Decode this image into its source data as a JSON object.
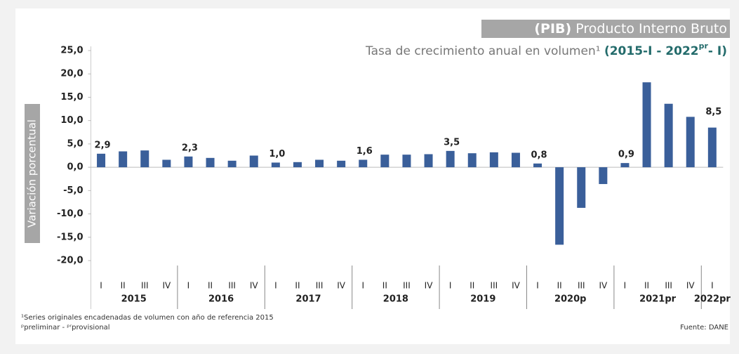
{
  "chart_data": {
    "type": "bar",
    "title_prefix": "(PIB)",
    "title": "Producto Interno Bruto",
    "subtitle": "Tasa de crecimiento anual en volumen¹",
    "subtitle_highlight": "(2015-I - 2022",
    "subtitle_sup": "pr",
    "subtitle_end": "- I)",
    "y_label": "Variación porcentual",
    "groups": [
      {
        "label": "2015",
        "categories": [
          "I",
          "II",
          "III",
          "IV"
        ]
      },
      {
        "label": "2016",
        "categories": [
          "I",
          "II",
          "III",
          "IV"
        ]
      },
      {
        "label": "2017",
        "categories": [
          "I",
          "II",
          "III",
          "IV"
        ]
      },
      {
        "label": "2018",
        "categories": [
          "I",
          "II",
          "III",
          "IV"
        ]
      },
      {
        "label": "2019",
        "categories": [
          "I",
          "II",
          "III",
          "IV"
        ]
      },
      {
        "label": "2020p",
        "categories": [
          "I",
          "II",
          "III",
          "IV"
        ]
      },
      {
        "label": "2021pr",
        "categories": [
          "I",
          "II",
          "III",
          "IV"
        ]
      },
      {
        "label": "2022pr",
        "categories": [
          "I"
        ]
      }
    ],
    "values": [
      2.9,
      3.4,
      3.6,
      1.6,
      2.3,
      2.0,
      1.4,
      2.5,
      1.0,
      1.1,
      1.6,
      1.4,
      1.6,
      2.7,
      2.7,
      2.8,
      3.5,
      3.0,
      3.2,
      3.1,
      0.8,
      -16.6,
      -8.7,
      -3.6,
      0.9,
      18.2,
      13.6,
      10.8,
      8.5
    ],
    "value_labels": [
      "2,9",
      null,
      null,
      null,
      "2,3",
      null,
      null,
      null,
      "1,0",
      null,
      null,
      null,
      "1,6",
      null,
      null,
      null,
      "3,5",
      null,
      null,
      null,
      "0,8",
      null,
      null,
      null,
      "0,9",
      null,
      null,
      null,
      "8,5"
    ],
    "color": "#3a5f9a",
    "ylim": [
      -20,
      25
    ],
    "yticks": [
      {
        "value": -20,
        "label": "-20,0"
      },
      {
        "value": -15,
        "label": "-15,0"
      },
      {
        "value": -10,
        "label": "-10,0"
      },
      {
        "value": -5,
        "label": "-5,0"
      },
      {
        "value": 0,
        "label": "0,0"
      },
      {
        "value": 5,
        "label": "5,0"
      },
      {
        "value": 10,
        "label": "10,0"
      },
      {
        "value": 15,
        "label": "15,0"
      },
      {
        "value": 20,
        "label": "20,0"
      },
      {
        "value": 25,
        "label": "25,0"
      }
    ],
    "grid": false,
    "footnotes": [
      "¹Series originales encadenadas de volumen con año de referencia 2015",
      "ᵖpreliminar - ᵖʳprovisional"
    ],
    "source": "Fuente: DANE"
  }
}
